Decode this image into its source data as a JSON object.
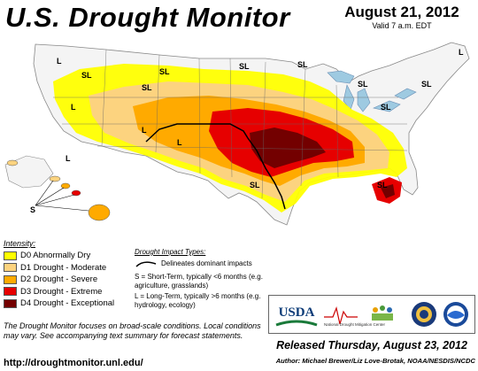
{
  "header": {
    "title": "U.S. Drought Monitor",
    "date": "August 21, 2012",
    "valid_time": "Valid 7 a.m. EDT"
  },
  "map": {
    "labels": {
      "short_term": "S",
      "long_term": "L",
      "short_long": "SL"
    }
  },
  "legend": {
    "title": "Intensity:",
    "items": [
      {
        "label": "D0 Abnormally Dry",
        "color": "#ffff00"
      },
      {
        "label": "D1 Drought - Moderate",
        "color": "#fcd37f"
      },
      {
        "label": "D2 Drought - Severe",
        "color": "#ffaa00"
      },
      {
        "label": "D3 Drought - Extreme",
        "color": "#e60000"
      },
      {
        "label": "D4 Drought - Exceptional",
        "color": "#730000"
      }
    ]
  },
  "impact": {
    "title": "Drought Impact Types:",
    "line_text": "Delineates dominant impacts",
    "s_text": "S = Short-Term, typically <6 months (e.g. agriculture, grasslands)",
    "l_text": "L = Long-Term, typically >6 months (e.g. hydrology, ecology)"
  },
  "disclaimer": "The Drought Monitor focuses on broad-scale conditions. Local conditions may vary. See accompanying text summary for forecast statements.",
  "url": "http://droughtmonitor.unl.edu/",
  "logos": {
    "usda": "USDA",
    "ndmc": "National Drought Mitigation Center"
  },
  "released": "Released Thursday, August 23, 2012",
  "authors": "Author: Michael Brewer/Liz Love-Brotak, NOAA/NESDIS/NCDC"
}
